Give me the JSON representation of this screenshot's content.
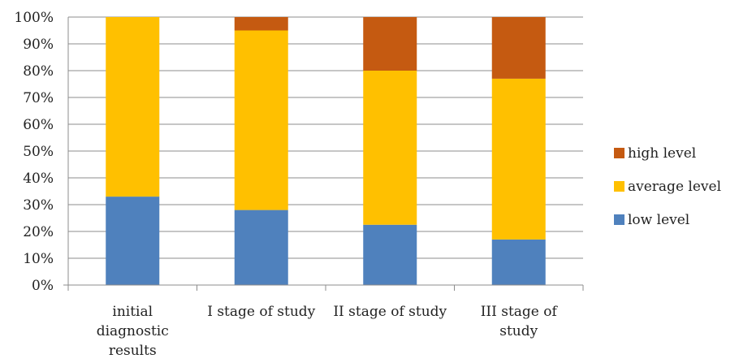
{
  "chart_data": {
    "type": "bar",
    "stacked": true,
    "percent": true,
    "categories": [
      [
        "initial",
        "diagnostic",
        "results"
      ],
      [
        "I stage of study"
      ],
      [
        "II stage of study"
      ],
      [
        "III stage of",
        "study"
      ]
    ],
    "series": [
      {
        "name": "low level",
        "color": "#4f81bd",
        "values": [
          33,
          28,
          22.5,
          17
        ]
      },
      {
        "name": "average level",
        "color": "#ffc000",
        "values": [
          67,
          67,
          57.5,
          60
        ]
      },
      {
        "name": "high level",
        "color": "#c55a11",
        "values": [
          0,
          5,
          20,
          23
        ]
      }
    ],
    "yticks": [
      "0%",
      "10%",
      "20%",
      "30%",
      "40%",
      "50%",
      "60%",
      "70%",
      "80%",
      "90%",
      "100%"
    ],
    "ylim": [
      0,
      100
    ],
    "grid": true,
    "legend_position": "right",
    "legend_order": [
      "high level",
      "average level",
      "low level"
    ]
  }
}
